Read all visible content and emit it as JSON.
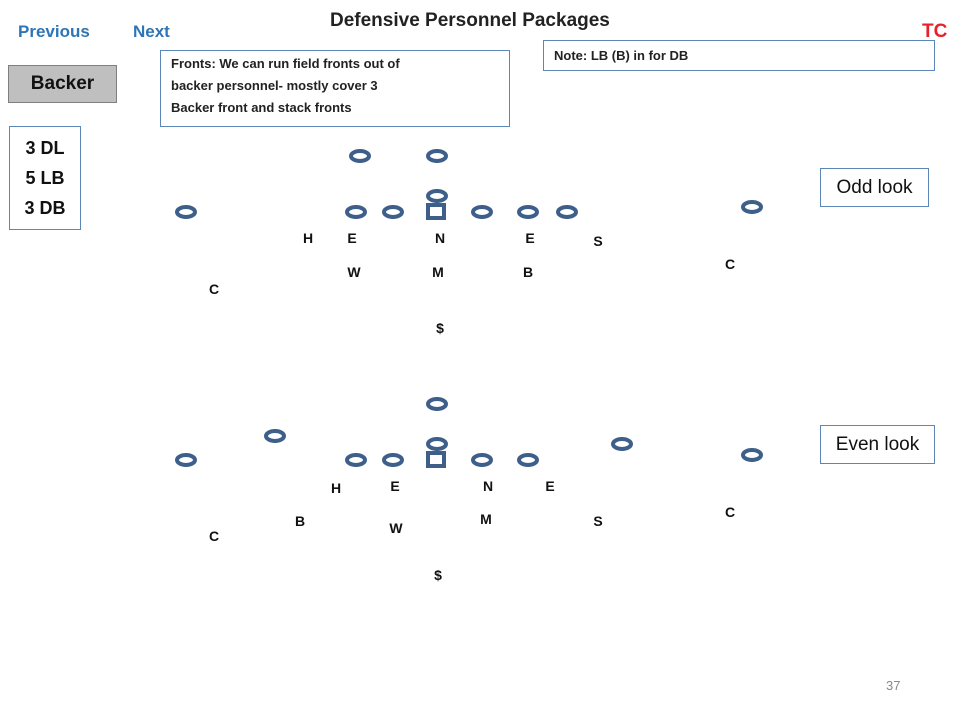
{
  "nav": {
    "previous": "Previous",
    "next": "Next"
  },
  "title": "Defensive Personnel Packages",
  "tc": "TC",
  "backer_button": "Backer",
  "personnel": [
    "3 DL",
    "5 LB",
    "3 DB"
  ],
  "fronts_note": [
    "Fronts:  We can run field fronts out of",
    "backer personnel- mostly cover 3",
    "Backer front and stack fronts"
  ],
  "side_note": "Note:  LB (B) in for DB",
  "looks": {
    "odd": "Odd look",
    "even": "Even look"
  },
  "odd": {
    "labels": [
      "H",
      "E",
      "N",
      "E",
      "S",
      "W",
      "M",
      "B",
      "C",
      "C",
      "$"
    ]
  },
  "even": {
    "labels": [
      "H",
      "E",
      "N",
      "E",
      "B",
      "W",
      "M",
      "S",
      "C",
      "C",
      "$"
    ]
  },
  "slide_number": "37",
  "colors": {
    "nav": "#2e75b6",
    "tc": "#e8202a",
    "player_outline": "#3d5f8a",
    "box_border": "#5a86b8"
  }
}
